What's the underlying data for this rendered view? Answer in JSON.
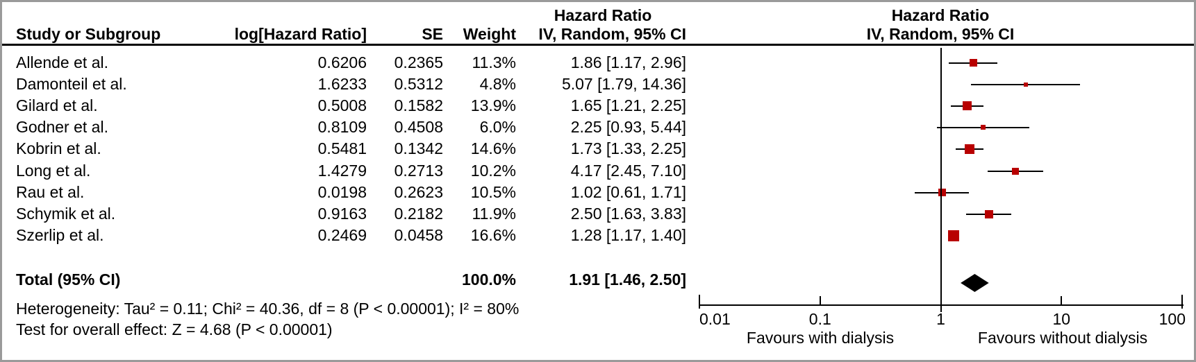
{
  "table": {
    "headers": {
      "study": "Study or Subgroup",
      "log_hr": "log[Hazard Ratio]",
      "se": "SE",
      "weight": "Weight",
      "effect_line1": "Hazard Ratio",
      "effect_line2": "IV, Random, 95% CI"
    },
    "total_label": "Total (95% CI)"
  },
  "plot": {
    "header_line1": "Hazard Ratio",
    "header_line2": "IV, Random, 95% CI",
    "favours_left": "Favours with dialysis",
    "favours_right": "Favours without dialysis"
  },
  "footnotes": {
    "heterogeneity": "Heterogeneity: Tau² = 0.11; Chi² = 40.36, df = 8 (P < 0.00001); I² = 80%",
    "overall_effect": "Test for overall effect: Z = 4.68 (P < 0.00001)"
  },
  "colors": {
    "square": "#b80000",
    "diamond": "#000000",
    "lines": "#000000",
    "frame_border": "#9a9a9a"
  },
  "chart_data": {
    "type": "forest",
    "x_scale": "log",
    "x_range": [
      0.01,
      100
    ],
    "x_ticks": [
      0.01,
      0.1,
      1,
      10,
      100
    ],
    "x_tick_labels": [
      "0.01",
      "0.1",
      "1",
      "10",
      "100"
    ],
    "null_line": 1,
    "effect_measure": "Hazard Ratio",
    "model": "IV, Random, 95% CI",
    "studies": [
      {
        "name": "Allende et al.",
        "log_hr": 0.6206,
        "se": 0.2365,
        "weight_pct": 11.3,
        "hr": 1.86,
        "ci_low": 1.17,
        "ci_high": 2.96
      },
      {
        "name": "Damonteil et al.",
        "log_hr": 1.6233,
        "se": 0.5312,
        "weight_pct": 4.8,
        "hr": 5.07,
        "ci_low": 1.79,
        "ci_high": 14.36
      },
      {
        "name": "Gilard et al.",
        "log_hr": 0.5008,
        "se": 0.1582,
        "weight_pct": 13.9,
        "hr": 1.65,
        "ci_low": 1.21,
        "ci_high": 2.25
      },
      {
        "name": "Godner et al.",
        "log_hr": 0.8109,
        "se": 0.4508,
        "weight_pct": 6.0,
        "hr": 2.25,
        "ci_low": 0.93,
        "ci_high": 5.44
      },
      {
        "name": "Kobrin et al.",
        "log_hr": 0.5481,
        "se": 0.1342,
        "weight_pct": 14.6,
        "hr": 1.73,
        "ci_low": 1.33,
        "ci_high": 2.25
      },
      {
        "name": "Long et al.",
        "log_hr": 1.4279,
        "se": 0.2713,
        "weight_pct": 10.2,
        "hr": 4.17,
        "ci_low": 2.45,
        "ci_high": 7.1
      },
      {
        "name": "Rau et al.",
        "log_hr": 0.0198,
        "se": 0.2623,
        "weight_pct": 10.5,
        "hr": 1.02,
        "ci_low": 0.61,
        "ci_high": 1.71
      },
      {
        "name": "Schymik et al.",
        "log_hr": 0.9163,
        "se": 0.2182,
        "weight_pct": 11.9,
        "hr": 2.5,
        "ci_low": 1.63,
        "ci_high": 3.83
      },
      {
        "name": "Szerlip et al.",
        "log_hr": 0.2469,
        "se": 0.0458,
        "weight_pct": 16.6,
        "hr": 1.28,
        "ci_low": 1.17,
        "ci_high": 1.4
      }
    ],
    "total": {
      "name": "Total (95% CI)",
      "weight_pct": 100.0,
      "hr": 1.91,
      "ci_low": 1.46,
      "ci_high": 2.5
    },
    "heterogeneity": "Tau² = 0.11; Chi² = 40.36, df = 8 (P < 0.00001); I² = 80%",
    "overall_effect_test": "Z = 4.68 (P < 0.00001)",
    "favours_left": "Favours with dialysis",
    "favours_right": "Favours without dialysis"
  }
}
